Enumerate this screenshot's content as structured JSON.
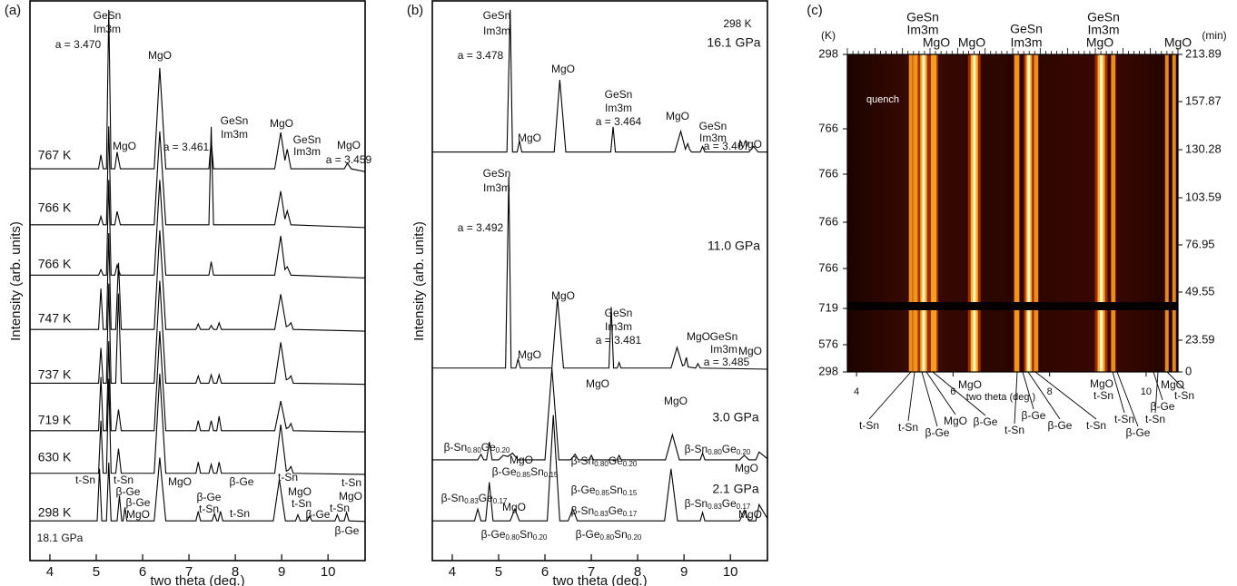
{
  "chart_data": [
    {
      "type": "line",
      "panel": "(a)",
      "xlabel": "two theta (deg.)",
      "ylabel": "Intensity (arb. units)",
      "xlim": [
        3.57,
        10.8
      ],
      "xticks": [
        4,
        5,
        6,
        7,
        8,
        9,
        10
      ],
      "ylim": [
        0,
        100
      ],
      "series": [
        {
          "name": "767 K",
          "color": "#000000",
          "x": [
            3.57,
            5.05,
            5.1,
            5.15,
            5.22,
            5.27,
            5.32,
            5.4,
            5.45,
            5.52,
            6.25,
            6.37,
            6.5,
            7.43,
            7.48,
            7.53,
            8.85,
            8.98,
            9.07,
            9.12,
            9.2,
            10.35,
            10.42,
            10.5,
            10.8
          ],
          "values": [
            70,
            70,
            72.5,
            70,
            70,
            98.4,
            70,
            70,
            73,
            70,
            70,
            88,
            70,
            70,
            75,
            70,
            70,
            76.5,
            71.5,
            73.5,
            70,
            70,
            71,
            70,
            69.5
          ]
        },
        {
          "name": "766 K",
          "color": "#000000",
          "x": [
            3.57,
            5.05,
            5.1,
            5.15,
            5.22,
            5.27,
            5.32,
            5.4,
            5.45,
            5.52,
            6.25,
            6.37,
            6.5,
            7.43,
            7.48,
            7.53,
            8.85,
            8.98,
            9.07,
            9.12,
            9.2,
            10.8
          ],
          "values": [
            60,
            60,
            61.5,
            60,
            60,
            77.6,
            60,
            60,
            62.4,
            60,
            60,
            76.7,
            60,
            60,
            77.5,
            60,
            60,
            66,
            61,
            62.5,
            60,
            59.5
          ]
        },
        {
          "name": "766 K",
          "color": "#000000",
          "x": [
            3.57,
            5.05,
            5.1,
            5.15,
            5.22,
            5.27,
            5.32,
            5.4,
            5.45,
            5.52,
            6.25,
            6.37,
            6.5,
            7.43,
            7.48,
            7.53,
            8.85,
            8.98,
            9.07,
            9.12,
            9.2,
            10.8
          ],
          "values": [
            51,
            51,
            52,
            51,
            51,
            68,
            51,
            51,
            52.8,
            51,
            51,
            68,
            51,
            51,
            53.4,
            51,
            51,
            58,
            52,
            52.5,
            51,
            50.5
          ]
        },
        {
          "name": "747 K",
          "color": "#000000",
          "x": [
            3.57,
            5.05,
            5.1,
            5.15,
            5.22,
            5.27,
            5.32,
            5.42,
            5.48,
            5.54,
            6.25,
            6.37,
            6.5,
            7.15,
            7.2,
            7.25,
            7.43,
            7.48,
            7.53,
            7.6,
            7.65,
            7.7,
            8.85,
            8.98,
            9.1,
            9.15,
            9.2,
            9.25,
            10.8
          ],
          "values": [
            41.3,
            41.3,
            48.6,
            41.3,
            41.3,
            58.5,
            41.3,
            41.3,
            53.2,
            41.3,
            41.3,
            59,
            41.3,
            41.3,
            42.3,
            41.3,
            41.3,
            42,
            41.3,
            41.3,
            42.5,
            41.3,
            41.3,
            47.6,
            41.8,
            42,
            42.5,
            41.3,
            41
          ]
        },
        {
          "name": "737 K",
          "color": "#000000",
          "x": [
            3.57,
            5.05,
            5.1,
            5.15,
            5.22,
            5.27,
            5.32,
            5.42,
            5.48,
            5.54,
            6.25,
            6.37,
            6.5,
            7.15,
            7.2,
            7.25,
            7.43,
            7.48,
            7.53,
            7.6,
            7.65,
            7.7,
            8.85,
            8.98,
            9.1,
            9.15,
            9.2,
            9.25,
            10.8
          ],
          "values": [
            31.7,
            31.7,
            38,
            31.7,
            31.7,
            49.5,
            31.7,
            31.7,
            47.7,
            31.7,
            31.7,
            50,
            31.7,
            31.7,
            33,
            31.7,
            31.7,
            33.2,
            31.7,
            31.7,
            33.2,
            31.7,
            31.7,
            39,
            32.3,
            32.5,
            33,
            31.7,
            31.5
          ]
        },
        {
          "name": "719 K",
          "color": "#000000",
          "x": [
            3.57,
            5.05,
            5.1,
            5.15,
            5.22,
            5.27,
            5.32,
            5.42,
            5.48,
            5.54,
            6.25,
            6.37,
            6.5,
            7.15,
            7.2,
            7.25,
            7.43,
            7.48,
            7.53,
            7.6,
            7.65,
            7.7,
            8.85,
            8.98,
            9.1,
            9.15,
            9.2,
            9.25,
            10.8
          ],
          "values": [
            23.2,
            23.2,
            32.8,
            23.2,
            23.2,
            39.2,
            23.2,
            23.2,
            27,
            23.2,
            23.2,
            41,
            23.2,
            23.2,
            25,
            23.2,
            23.2,
            25,
            23.2,
            23.2,
            25.8,
            23.2,
            23.2,
            28.5,
            23.6,
            23.8,
            24.5,
            23.2,
            23
          ]
        },
        {
          "name": "630 K",
          "color": "#000000",
          "x": [
            3.57,
            5.05,
            5.1,
            5.15,
            5.22,
            5.27,
            5.32,
            5.42,
            5.48,
            5.54,
            6.25,
            6.37,
            6.5,
            7.15,
            7.2,
            7.25,
            7.43,
            7.48,
            7.53,
            7.6,
            7.65,
            7.7,
            8.85,
            8.98,
            9.1,
            9.15,
            9.2,
            9.25,
            10.8
          ],
          "values": [
            15.6,
            15.6,
            25,
            15.6,
            15.6,
            32.5,
            15.6,
            15.6,
            20,
            15.6,
            15.6,
            33.4,
            15.6,
            15.6,
            17.6,
            15.6,
            15.6,
            17.2,
            15.6,
            15.6,
            17.6,
            15.6,
            15.6,
            24.3,
            16,
            16.2,
            16.8,
            15.6,
            15.4
          ]
        },
        {
          "name": "298 K",
          "color": "#000000",
          "x": [
            3.57,
            5.02,
            5.07,
            5.12,
            5.22,
            5.27,
            5.32,
            5.45,
            5.5,
            5.55,
            5.58,
            5.62,
            5.66,
            6.25,
            6.37,
            6.5,
            7.15,
            7.2,
            7.25,
            7.5,
            7.55,
            7.6,
            7.63,
            7.68,
            7.73,
            8.82,
            8.95,
            9.08,
            9.3,
            9.35,
            9.4,
            9.55,
            9.6,
            9.65,
            10.15,
            10.2,
            10.25,
            10.35,
            10.4,
            10.45,
            10.8
          ],
          "values": [
            7.1,
            7.1,
            16.4,
            7.1,
            7.1,
            17.5,
            7.1,
            7.1,
            11.6,
            7.1,
            7.1,
            9.5,
            7.1,
            7.1,
            18.4,
            7.1,
            7.1,
            8.8,
            7.1,
            7.1,
            8.4,
            7.1,
            7.1,
            8.8,
            7.1,
            7.1,
            14.5,
            7.1,
            7.1,
            8.2,
            7.1,
            7.1,
            8,
            7.1,
            7.1,
            8.2,
            7.1,
            7.1,
            8.6,
            7.1,
            7
          ]
        }
      ],
      "annotations": [
        "GeSn",
        "Im3m",
        "a = 3.470",
        "MgO",
        "MgO",
        "a = 3.461",
        "GeSn",
        "Im3m",
        "MgO",
        "GeSn",
        "Im3m",
        "MgO",
        "a = 3.459",
        "18.1 GPa",
        "t-Sn",
        "t-Sn",
        "β-Ge",
        "β-Ge",
        "MgO",
        "MgO",
        "β-Ge",
        "β-Ge",
        "t-Sn",
        "t-Sn",
        "t-Sn",
        "MgO",
        "t-Sn",
        "β-Ge",
        "t-Sn",
        "t-Sn",
        "MgO",
        "β-Ge"
      ]
    },
    {
      "type": "line",
      "panel": "(b)",
      "xlabel": "two theta (deg.)",
      "ylabel": "Intensity (arb. units)",
      "xlim": [
        3.57,
        10.8
      ],
      "xticks": [
        4,
        5,
        6,
        7,
        8,
        9,
        10
      ],
      "ylim": [
        0,
        100
      ],
      "series": [
        {
          "name": "16.1 GPa",
          "color": "#000000",
          "x": [
            3.57,
            5.18,
            5.25,
            5.3,
            5.4,
            5.45,
            5.5,
            6.2,
            6.32,
            6.45,
            7.42,
            7.47,
            7.52,
            8.8,
            8.93,
            9.03,
            9.08,
            9.12,
            9.16,
            9.35,
            9.4,
            9.45,
            10.4,
            10.5,
            10.6,
            10.8
          ],
          "values": [
            73,
            73,
            98.4,
            73,
            73,
            75,
            73,
            73,
            85.9,
            73,
            73,
            77.5,
            73,
            73,
            76.7,
            73.5,
            74.5,
            73.5,
            73,
            73,
            74,
            73,
            73,
            74,
            73,
            73
          ]
        },
        {
          "name": "11.0 GPa",
          "color": "#000000",
          "x": [
            3.57,
            5.15,
            5.22,
            5.27,
            5.37,
            5.42,
            5.47,
            6.15,
            6.27,
            6.4,
            7.38,
            7.43,
            7.48,
            7.56,
            7.6,
            7.64,
            8.72,
            8.85,
            8.97,
            9.01,
            9.05,
            9.09,
            9.25,
            9.3,
            9.35,
            10.8
          ],
          "values": [
            34.4,
            34.4,
            68.6,
            34.4,
            34.4,
            36,
            34.4,
            34.4,
            46.9,
            34.4,
            34.4,
            45.3,
            34.4,
            34.4,
            35.4,
            34.4,
            34.4,
            38.1,
            34.8,
            35,
            36.3,
            34.6,
            34.4,
            35.2,
            34.4,
            34.2
          ]
        },
        {
          "name": "3.0 GPa",
          "color": "#000000",
          "x": [
            3.57,
            4.55,
            4.62,
            4.68,
            4.74,
            4.8,
            4.86,
            5.0,
            5.1,
            5.2,
            5.3,
            5.42,
            6.0,
            6.15,
            6.3,
            6.55,
            6.65,
            6.72,
            6.95,
            7.0,
            7.05,
            7.55,
            7.6,
            7.65,
            8.6,
            8.75,
            8.9,
            9.35,
            9.4,
            9.45,
            10.2,
            10.3,
            10.4,
            10.55,
            10.62,
            10.8
          ],
          "values": [
            18,
            18,
            19,
            18,
            18,
            21.2,
            18,
            18,
            18.8,
            18.6,
            19.2,
            18,
            18,
            34.4,
            18,
            18,
            19,
            18,
            18,
            18.8,
            18,
            18,
            18.8,
            18,
            18,
            22.5,
            18,
            18,
            19.2,
            18,
            18,
            18.8,
            18,
            18,
            19.4,
            18.2
          ]
        },
        {
          "name": "2.1 GPa",
          "color": "#000000",
          "x": [
            3.57,
            4.48,
            4.55,
            4.62,
            4.72,
            4.8,
            4.88,
            5.25,
            5.35,
            5.45,
            6.05,
            6.18,
            6.32,
            6.5,
            6.6,
            6.7,
            8.58,
            8.72,
            8.86,
            9.35,
            9.4,
            9.45,
            10.2,
            10.3,
            10.4,
            10.55,
            10.62,
            10.8
          ],
          "values": [
            7.1,
            7.1,
            9.2,
            7.1,
            7.1,
            14,
            7.1,
            7.1,
            9.2,
            7.1,
            7.1,
            26,
            7.1,
            7.1,
            9.2,
            7.1,
            7.1,
            16.4,
            7.1,
            7.1,
            8.6,
            7.1,
            7.1,
            9,
            7.1,
            7.1,
            10,
            7.5
          ]
        }
      ],
      "annotations": [
        "GeSn",
        "Im3m",
        "a = 3.478",
        "MgO",
        "298 K",
        "MgO",
        "GeSn",
        "Im3m",
        "a = 3.464",
        "MgO",
        "GeSn",
        "Im3m",
        "a = 3.467",
        "MgO",
        "GeSn",
        "Im3m",
        "a = 3.492",
        "MgO",
        "GeSn",
        "Im3m",
        "a = 3.481",
        "MgO",
        "MgO",
        "GeSn",
        "Im3m",
        "a = 3.485",
        "MgO",
        "MgO",
        "MgO",
        [
          "β-Sn",
          "0.80",
          "Ge",
          "0.20"
        ],
        "MgO",
        [
          "β-Sn",
          "0.80",
          "Ge",
          "0.20"
        ],
        [
          "β-Sn",
          "0.80",
          "Ge",
          "0.20"
        ],
        "MgO",
        [
          "β-Ge",
          "0.85",
          "Sn",
          "0.15"
        ],
        [
          "β-Ge",
          "0.85",
          "Sn",
          "0.15"
        ],
        [
          "β-Sn",
          "0.83",
          "Ge",
          "0.17"
        ],
        "MgO",
        [
          "β-Sn",
          "0.83",
          "Ge",
          "0.17"
        ],
        [
          "β-Sn",
          "0.83",
          "Ge",
          "0.17"
        ],
        "MgO",
        [
          "β-Ge",
          "0.80",
          "Sn",
          "0.20"
        ],
        [
          "β-Ge",
          "0.80",
          "Sn",
          "0.20"
        ]
      ]
    },
    {
      "type": "heatmap",
      "panel": "(c)",
      "xlabel": "two theta (deg.)",
      "ylabel": "(K)",
      "y2label": "(min)",
      "xlim": [
        3.81,
        10.66
      ],
      "xticks": [
        4,
        6,
        8,
        10
      ],
      "temperatures": [
        298,
        766,
        766,
        766,
        766,
        719,
        576,
        298
      ],
      "times": [
        213.89,
        157.87,
        130.28,
        103.59,
        76.95,
        49.55,
        23.59,
        0
      ],
      "bands": [
        {
          "x": 5.13,
          "intensity": 0.4
        },
        {
          "x": 5.22,
          "intensity": 0.5
        },
        {
          "x": 5.39,
          "intensity": 0.9
        },
        {
          "x": 5.6,
          "intensity": 0.7
        },
        {
          "x": 6.44,
          "intensity": 1.0
        },
        {
          "x": 7.32,
          "intensity": 0.5
        },
        {
          "x": 7.57,
          "intensity": 0.8
        },
        {
          "x": 7.72,
          "intensity": 0.4
        },
        {
          "x": 9.07,
          "intensity": 1.0
        },
        {
          "x": 9.32,
          "intensity": 0.4
        },
        {
          "x": 10.43,
          "intensity": 0.3
        },
        {
          "x": 10.58,
          "intensity": 0.3
        }
      ],
      "annotations": [
        "quench"
      ],
      "top_labels": [
        "GeSn",
        "Im3m",
        "MgO",
        "MgO",
        "GeSn",
        "Im3m",
        "GeSn",
        "Im3m",
        "MgO",
        "MgO"
      ],
      "bottom_labels": [
        "t-Sn",
        "t-Sn",
        "β-Ge",
        "MgO",
        "β-Ge",
        "MgO",
        "t-Sn",
        "β-Ge",
        "β-Ge",
        "t-Sn",
        "MgO",
        "t-Sn",
        "t-Sn",
        "β-Ge",
        "β-Ge",
        "t-Sn",
        "MgO",
        "t-Sn"
      ]
    }
  ]
}
